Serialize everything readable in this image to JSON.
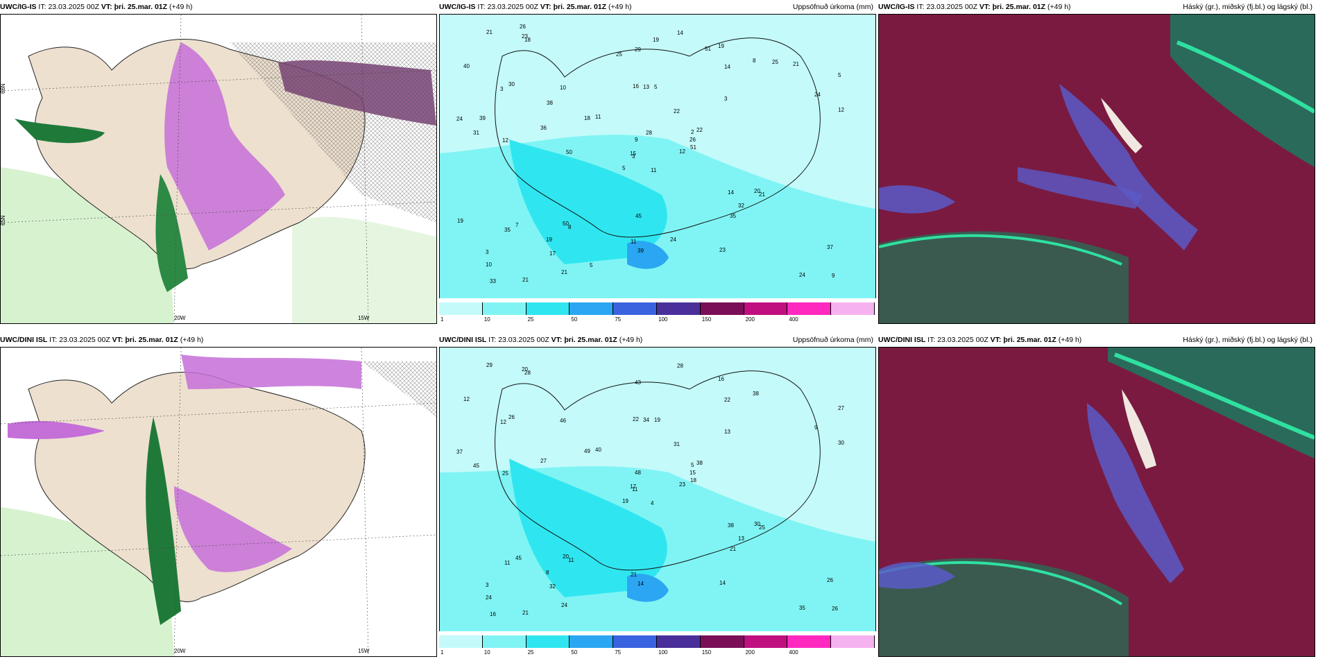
{
  "panels": [
    {
      "id": "r1c1",
      "model": "UWC/IG-IS",
      "it_label": "IT:",
      "it": "23.03.2025 00Z",
      "vt_label": "VT:",
      "vt": "þri. 25.mar. 01Z",
      "lead": "(+49 h)",
      "right_title": ""
    },
    {
      "id": "r1c2",
      "model": "UWC/IG-IS",
      "it_label": "IT:",
      "it": "23.03.2025 00Z",
      "vt_label": "VT:",
      "vt": "þri. 25.mar. 01Z",
      "lead": "(+49 h)",
      "right_title": "Uppsöfnuð úrkoma (mm)"
    },
    {
      "id": "r1c3",
      "model": "UWC/IG-IS",
      "it_label": "IT:",
      "it": "23.03.2025 00Z",
      "vt_label": "VT:",
      "vt": "þri. 25.mar. 01Z",
      "lead": "(+49 h)",
      "right_title": "Háský (gr.), miðský (fj.bl.) og lágský (bl.)"
    },
    {
      "id": "r2c1",
      "model": "UWC/DINI ISL",
      "it_label": "IT:",
      "it": "23.03.2025 00Z",
      "vt_label": "VT:",
      "vt": "þri. 25.mar. 01Z",
      "lead": "(+49 h)",
      "right_title": ""
    },
    {
      "id": "r2c2",
      "model": "UWC/DINI ISL",
      "it_label": "IT:",
      "it": "23.03.2025 00Z",
      "vt_label": "VT:",
      "vt": "þri. 25.mar. 01Z",
      "lead": "(+49 h)",
      "right_title": "Uppsöfnuð úrkoma (mm)"
    },
    {
      "id": "r2c3",
      "model": "UWC/DINI ISL",
      "it_label": "IT:",
      "it": "23.03.2025 00Z",
      "vt_label": "VT:",
      "vt": "þri. 25.mar. 01Z",
      "lead": "(+49 h)",
      "right_title": "Háský (gr.), miðský (fj.bl.) og lágský (bl.)"
    }
  ],
  "axis_labels": {
    "lon1": "20W",
    "lon2": "15W",
    "lat1": "66N",
    "lat2": "65N",
    "lat3": "64N"
  },
  "colorbar": {
    "ticks": [
      "1",
      "10",
      "25",
      "50",
      "75",
      "100",
      "150",
      "200",
      "400"
    ],
    "colors": [
      "#c4fafa",
      "#80f4f4",
      "#2fe6f0",
      "#2ba6f2",
      "#3a63e0",
      "#4a2f9a",
      "#7a0f58",
      "#c01080",
      "#ff29c0",
      "#f6b2f0"
    ]
  },
  "precip_values": {
    "top": [
      "11",
      "3",
      "3",
      "3",
      "2",
      "8",
      "19",
      "5",
      "14",
      "12",
      "18",
      "9",
      "12",
      "5",
      "5",
      "3",
      "21",
      "16",
      "22",
      "7",
      "11",
      "10",
      "17",
      "13",
      "22",
      "21",
      "30",
      "29",
      "31",
      "14",
      "12",
      "15",
      "11",
      "9",
      "10",
      "8",
      "50",
      "24",
      "37",
      "20",
      "14",
      "18",
      "36",
      "35",
      "21",
      "24",
      "26",
      "33",
      "39",
      "51",
      "35",
      "24",
      "40",
      "32",
      "23",
      "19",
      "23",
      "21",
      "24",
      "21",
      "19",
      "50",
      "39",
      "38",
      "25",
      "26",
      "51",
      "25",
      "28",
      "19",
      "45",
      "5"
    ],
    "bottom": [
      "4",
      "12",
      "11",
      "3",
      "5",
      "11",
      "16",
      "19",
      "22",
      "23",
      "28",
      "26",
      "25",
      "27",
      "19",
      "13",
      "21",
      "22",
      "31",
      "45",
      "40",
      "24",
      "32",
      "34",
      "38",
      "25",
      "26",
      "43",
      "45",
      "38",
      "30",
      "17",
      "21",
      "48",
      "46",
      "38",
      "20",
      "35",
      "26",
      "30",
      "28",
      "49",
      "27",
      "21",
      "24",
      "37",
      "15",
      "16",
      "14",
      "18",
      "11",
      "9",
      "12",
      "13",
      "14",
      "8",
      "20",
      "29"
    ]
  },
  "cloud_legend": "Háský (gr.), miðský (fj.bl.) og lágský (bl.)"
}
